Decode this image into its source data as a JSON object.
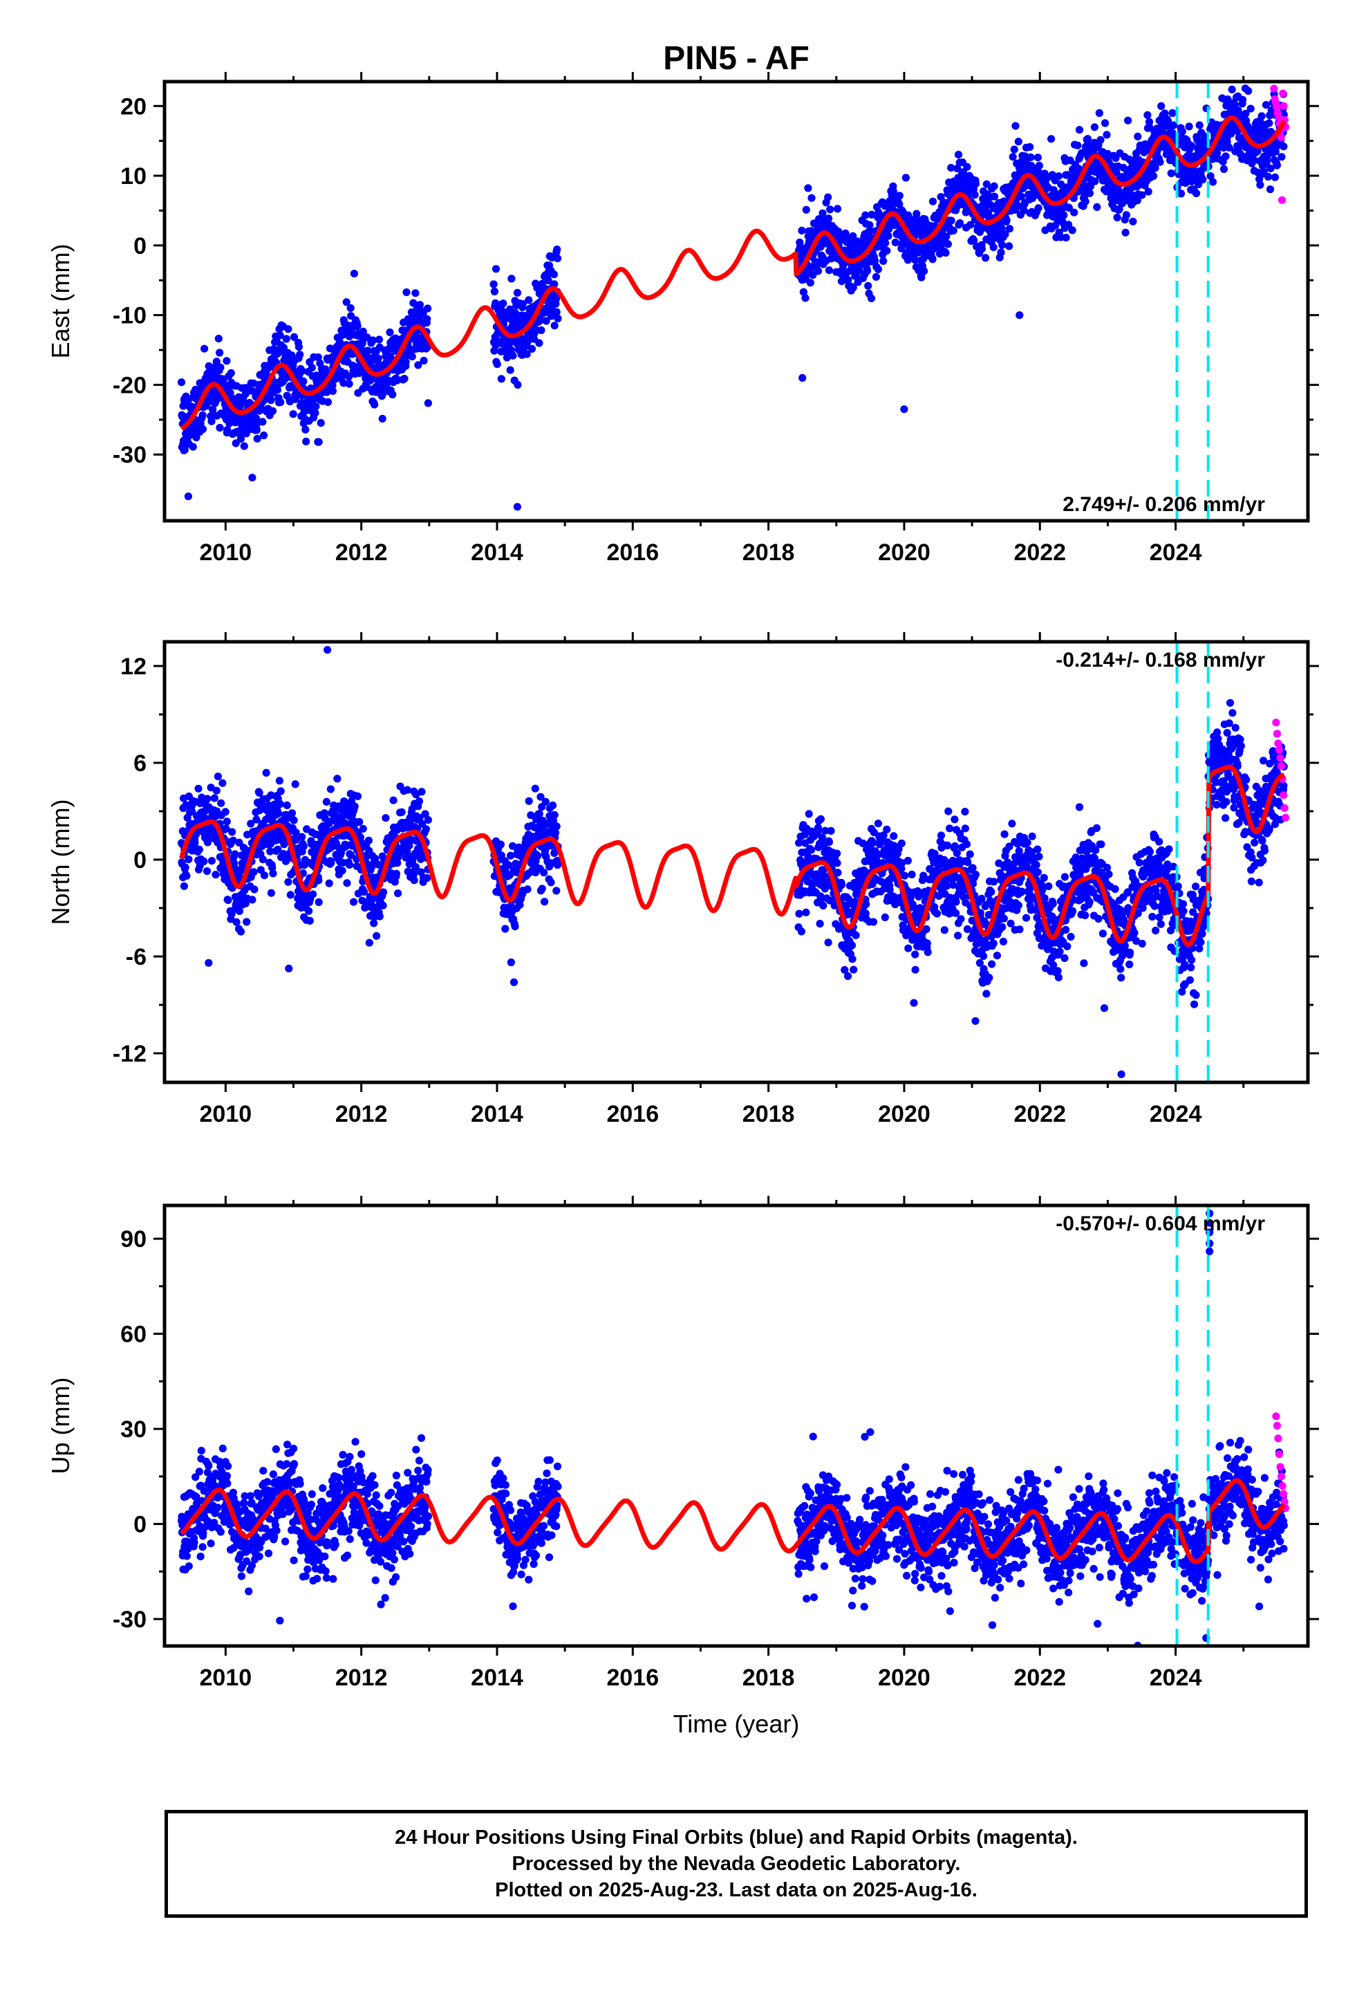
{
  "title": "PIN5 - AF",
  "colors": {
    "final_orbits": "#0000ff",
    "rapid_orbits": "#ff00ff",
    "model": "#ff0000",
    "events": "#00e5ee",
    "axes": "#000000"
  },
  "chart_data": [
    {
      "type": "scatter",
      "ylabel": "East (mm)",
      "xlabel": "",
      "rate_label": "2.749+/- 0.206 mm/yr",
      "rate_position": "bottom-right",
      "xlim": [
        2009.1,
        2025.95
      ],
      "ylim": [
        -39.5,
        23.5
      ],
      "yticks": [
        -30,
        -20,
        -10,
        0,
        10,
        20
      ],
      "xticks": [
        2010,
        2012,
        2014,
        2016,
        2018,
        2020,
        2022,
        2024
      ],
      "grid": false,
      "events": [
        2024.02,
        2024.48
      ],
      "data_segments": [
        [
          2009.35,
          2012.99
        ],
        [
          2013.95,
          2014.9
        ],
        [
          2018.43,
          2025.6
        ]
      ],
      "trend": {
        "rate": 2.749,
        "intercept": -24.2,
        "t0": 2009.35
      },
      "seasonal": {
        "annual_amp": 2.6,
        "annual_phase": 0.55,
        "semiannual_amp": 0.4,
        "semiannual_phase": 0.2
      },
      "offsets": [
        {
          "t": 2018.4,
          "dy": -3.0
        }
      ],
      "noise_sd": 2.4,
      "outliers": [
        [
          2014.3,
          -37.5
        ],
        [
          2020.0,
          -23.5
        ],
        [
          2009.45,
          -36.0
        ],
        [
          2018.5,
          -19.0
        ],
        [
          2021.7,
          -10.0
        ]
      ],
      "rapid": {
        "start": 2025.45,
        "end": 2025.62,
        "values": [
          22.5,
          21,
          20.5,
          19.8,
          19,
          18.5,
          17.5,
          16.5,
          15.5,
          6.5,
          21.8,
          20,
          18,
          17
        ]
      }
    },
    {
      "type": "scatter",
      "ylabel": "North (mm)",
      "xlabel": "",
      "rate_label": "-0.214+/- 0.168 mm/yr",
      "rate_position": "top-right",
      "xlim": [
        2009.1,
        2025.95
      ],
      "ylim": [
        -13.8,
        13.5
      ],
      "yticks": [
        -12,
        -6,
        0,
        6,
        12
      ],
      "xticks": [
        2010,
        2012,
        2014,
        2016,
        2018,
        2020,
        2022,
        2024
      ],
      "grid": false,
      "events": [
        2024.02,
        2024.48
      ],
      "data_segments": [
        [
          2009.35,
          2012.99
        ],
        [
          2013.95,
          2014.9
        ],
        [
          2018.43,
          2025.6
        ]
      ],
      "trend": {
        "rate": -0.214,
        "intercept": 0.9,
        "t0": 2009.35
      },
      "seasonal": {
        "annual_amp": 1.9,
        "annual_phase": 0.45,
        "semiannual_amp": 0.5,
        "semiannual_phase": 0.3
      },
      "offsets": [
        {
          "t": 2018.4,
          "dy": -0.6
        },
        {
          "t": 2024.48,
          "dy": 7.2
        }
      ],
      "noise_sd": 1.35,
      "outliers": [
        [
          2011.5,
          13.0
        ],
        [
          2023.2,
          -13.3
        ],
        [
          2021.05,
          -10.0
        ],
        [
          2022.95,
          -9.2
        ],
        [
          2014.25,
          -7.6
        ],
        [
          2009.75,
          -6.4
        ],
        [
          2024.12,
          -7.8
        ]
      ],
      "rapid": {
        "start": 2025.48,
        "end": 2025.62,
        "values": [
          8.5,
          7.8,
          7.2,
          6.8,
          6.3,
          5.8,
          5.0,
          4.0,
          3.2,
          2.6
        ]
      }
    },
    {
      "type": "scatter",
      "ylabel": "Up (mm)",
      "xlabel": "Time (year)",
      "rate_label": "-0.570+/- 0.604 mm/yr",
      "rate_position": "top-right",
      "xlim": [
        2009.1,
        2025.95
      ],
      "ylim": [
        -38.5,
        100.5
      ],
      "yticks": [
        -30,
        0,
        30,
        60,
        90
      ],
      "xticks": [
        2010,
        2012,
        2014,
        2016,
        2018,
        2020,
        2022,
        2024
      ],
      "grid": false,
      "events": [
        2024.02,
        2024.48
      ],
      "data_segments": [
        [
          2009.35,
          2012.99
        ],
        [
          2013.95,
          2014.9
        ],
        [
          2018.43,
          2025.6
        ]
      ],
      "trend": {
        "rate": -0.57,
        "intercept": 3.8,
        "t0": 2009.35
      },
      "seasonal": {
        "annual_amp": 6.8,
        "annual_phase": 0.6,
        "semiannual_amp": 1.3,
        "semiannual_phase": 0.35
      },
      "offsets": [
        {
          "t": 2024.48,
          "dy": 11.5
        }
      ],
      "noise_sd": 6.6,
      "outliers": [
        [
          2024.5,
          98.0
        ],
        [
          2024.5,
          95.0
        ],
        [
          2024.5,
          92.0
        ],
        [
          2024.5,
          88.5
        ],
        [
          2024.5,
          86.0
        ],
        [
          2024.45,
          -36.0
        ],
        [
          2010.8,
          -30.5
        ],
        [
          2022.85,
          -31.5
        ],
        [
          2019.5,
          29.0
        ],
        [
          2019.42,
          27.5
        ]
      ],
      "rapid": {
        "start": 2025.48,
        "end": 2025.62,
        "values": [
          34,
          31,
          27,
          22,
          18,
          15,
          12,
          9.5,
          7,
          5
        ]
      }
    }
  ],
  "footer": {
    "line1": "24 Hour Positions Using Final Orbits (blue) and Rapid Orbits (magenta).",
    "line2": "Processed by the Nevada Geodetic Laboratory.",
    "line3": "Plotted on 2025-Aug-23. Last data on 2025-Aug-16."
  }
}
